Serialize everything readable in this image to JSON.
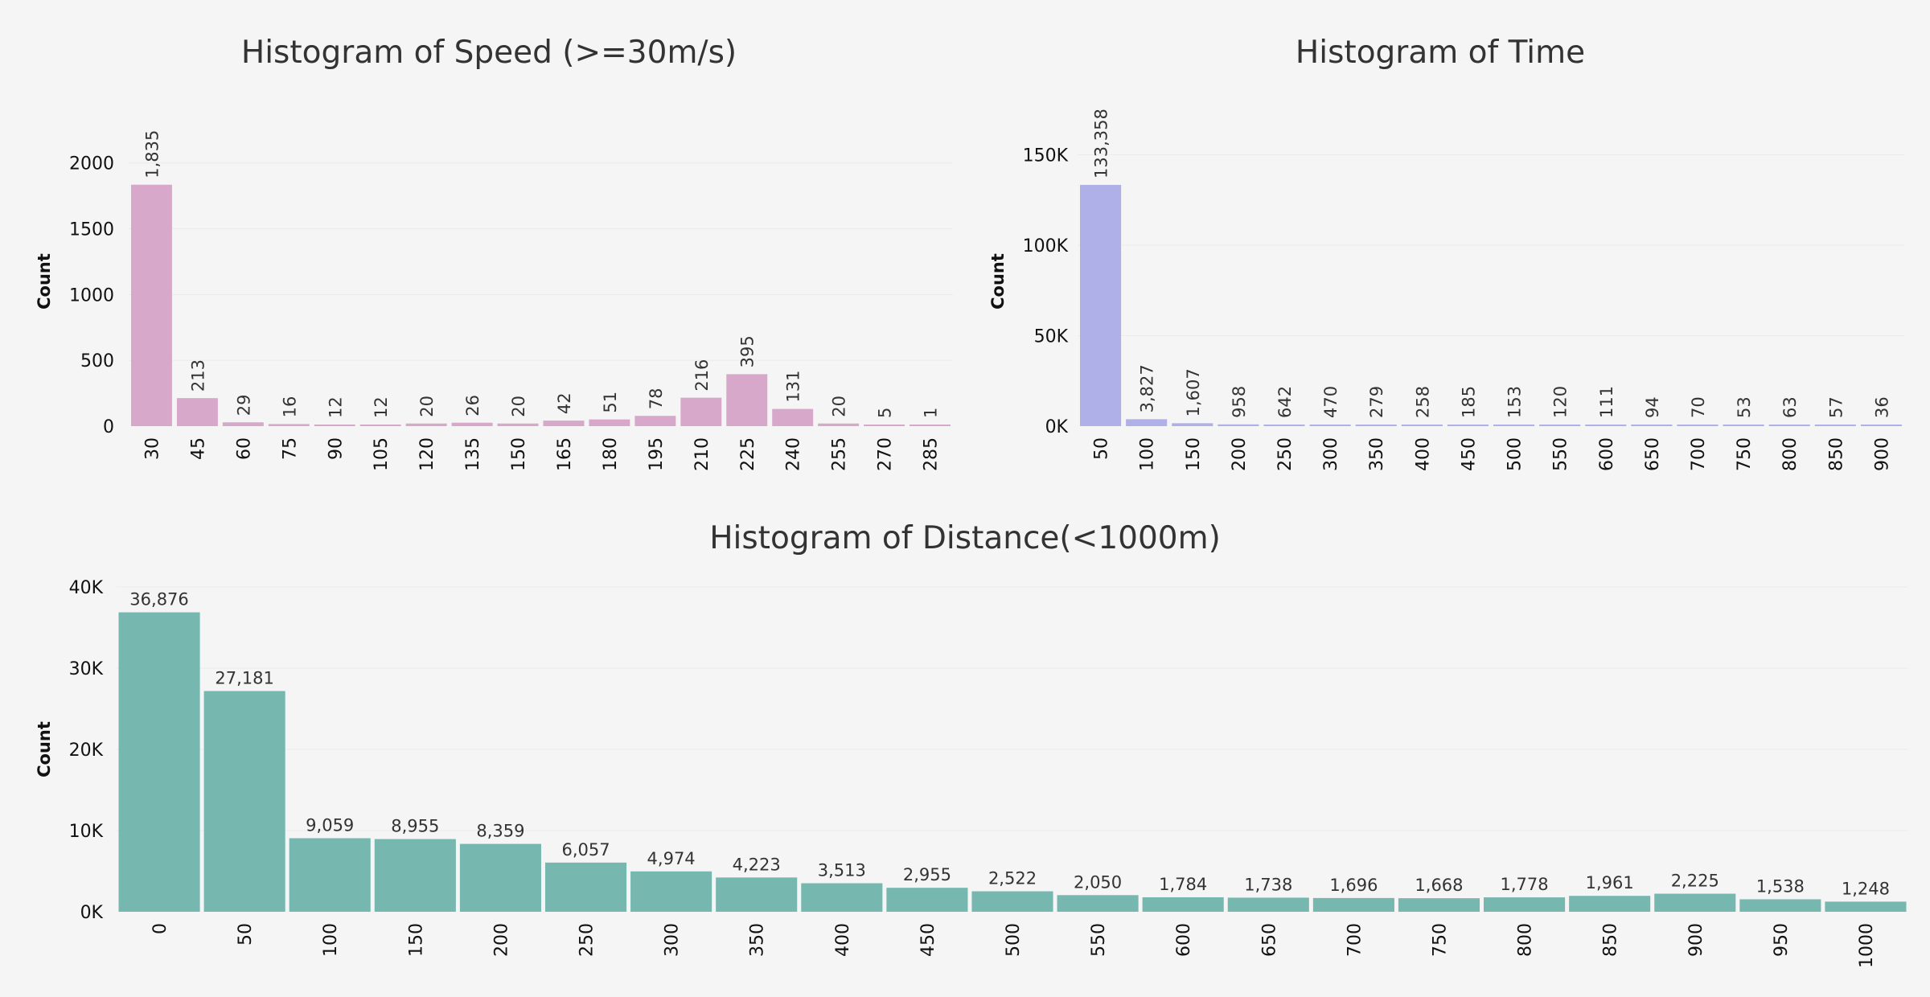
{
  "chart_data": [
    {
      "id": "speed",
      "type": "bar",
      "title": "Histogram of Speed (>=30m/s)",
      "ylabel": "Count",
      "categories": [
        "30",
        "45",
        "60",
        "75",
        "90",
        "105",
        "120",
        "135",
        "150",
        "165",
        "180",
        "195",
        "210",
        "225",
        "240",
        "255",
        "270",
        "285"
      ],
      "values": [
        1835,
        213,
        29,
        16,
        12,
        12,
        20,
        26,
        20,
        42,
        51,
        78,
        216,
        395,
        131,
        20,
        5,
        1
      ],
      "value_labels": [
        "1,835",
        "213",
        "29",
        "16",
        "12",
        "12",
        "20",
        "26",
        "20",
        "42",
        "51",
        "78",
        "216",
        "395",
        "131",
        "20",
        "5",
        "1"
      ],
      "yticks": [
        0,
        500,
        1000,
        1500,
        2000
      ],
      "ytick_labels": [
        "0",
        "500",
        "1000",
        "1500",
        "2000"
      ],
      "ylim": [
        0,
        2200
      ],
      "color": "#d7a8c9"
    },
    {
      "id": "time",
      "type": "bar",
      "title": "Histogram of Time",
      "ylabel": "Count",
      "categories": [
        "50",
        "100",
        "150",
        "200",
        "250",
        "300",
        "350",
        "400",
        "450",
        "500",
        "550",
        "600",
        "650",
        "700",
        "750",
        "800",
        "850",
        "900"
      ],
      "values": [
        133358,
        3827,
        1607,
        958,
        642,
        470,
        279,
        258,
        185,
        153,
        120,
        111,
        94,
        70,
        53,
        63,
        57,
        36
      ],
      "value_labels": [
        "133,358",
        "3,827",
        "1,607",
        "958",
        "642",
        "470",
        "279",
        "258",
        "185",
        "153",
        "120",
        "111",
        "94",
        "70",
        "53",
        "63",
        "57",
        "36"
      ],
      "yticks": [
        0,
        50000,
        100000,
        150000
      ],
      "ytick_labels": [
        "0K",
        "50K",
        "100K",
        "150K"
      ],
      "ylim": [
        0,
        160000
      ],
      "color": "#aeb0e7"
    },
    {
      "id": "distance",
      "type": "bar",
      "title": "Histogram of Distance(<1000m)",
      "ylabel": "Count",
      "categories": [
        "0",
        "50",
        "100",
        "150",
        "200",
        "250",
        "300",
        "350",
        "400",
        "450",
        "500",
        "550",
        "600",
        "650",
        "700",
        "750",
        "800",
        "850",
        "900",
        "950",
        "1000"
      ],
      "values": [
        36876,
        27181,
        9059,
        8955,
        8359,
        6057,
        4974,
        4223,
        3513,
        2955,
        2522,
        2050,
        1784,
        1738,
        1696,
        1668,
        1778,
        1961,
        2225,
        1538,
        1248
      ],
      "value_labels": [
        "36,876",
        "27,181",
        "9,059",
        "8,955",
        "8,359",
        "6,057",
        "4,974",
        "4,223",
        "3,513",
        "2,955",
        "2,522",
        "2,050",
        "1,784",
        "1,738",
        "1,696",
        "1,668",
        "1,778",
        "1,961",
        "2,225",
        "1,538",
        "1,248"
      ],
      "yticks": [
        0,
        10000,
        20000,
        30000,
        40000
      ],
      "ytick_labels": [
        "0K",
        "10K",
        "20K",
        "30K",
        "40K"
      ],
      "ylim": [
        0,
        40000
      ],
      "color": "#76b8b0"
    }
  ]
}
